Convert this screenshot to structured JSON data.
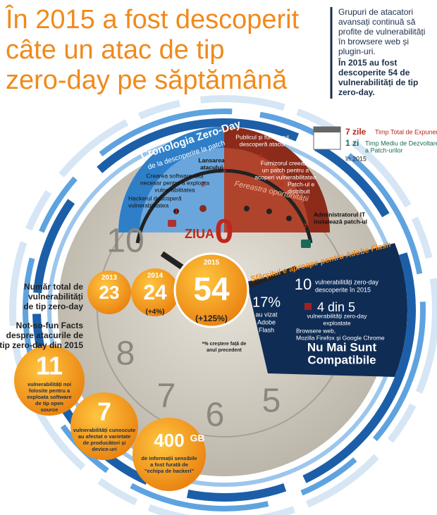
{
  "header": {
    "title": [
      "În 2015 a fost descoperit",
      "câte un atac de tip",
      "zero-day pe săptămână"
    ]
  },
  "sidebar": {
    "text": [
      "Grupuri de atacatori",
      "avansați continuă să",
      "profite de vulnerabilități",
      "în browsere web și",
      "plugin-uri."
    ],
    "highlight": [
      "În 2015 au fost",
      "descoperite 54 de",
      "vulnerabilități de tip",
      "zero-day."
    ]
  },
  "timeline": {
    "title": "Cronologia Zero-Day",
    "subtitle": "de la descoperire la patch",
    "day_label": "ZIUA",
    "day_number": "0",
    "window": "Fereastra oportunității",
    "steps": [
      {
        "number": "1",
        "label": [
          "Hackerul descoperă",
          "vulnerabilitatea"
        ]
      },
      {
        "number": "2",
        "label": [
          "Crearea software-ului",
          "necesar pentru a exploata",
          "vulnerabilitatea"
        ]
      },
      {
        "number": "3",
        "label": [
          "Lansarea",
          "atacului"
        ]
      },
      {
        "number": "4",
        "label": [
          "Publicul și furnizorul",
          "descoperă atacul"
        ]
      },
      {
        "number": "5",
        "label": [
          "Furnizorul creează",
          "un patch pentru a",
          "acoperi vulnerabilitatea"
        ]
      },
      {
        "number": "6",
        "label": [
          "Patch-ul e",
          "distribuit"
        ]
      },
      {
        "number": "7",
        "label": [
          "Administratorul IT",
          "instalează patch-ul"
        ]
      }
    ]
  },
  "exposure": {
    "days": "7 zile",
    "days_label": "Timp Total de Expunere",
    "patch": "1 zi",
    "patch_label": [
      "Timp Mediu de Dezvoltare",
      "a Patch-urilor"
    ],
    "year": "în 2015"
  },
  "totals": {
    "label": [
      "Număr total de",
      "vulnerabilități",
      "de tip zero-day"
    ],
    "years": [
      {
        "year": "2013",
        "count": 23
      },
      {
        "year": "2014",
        "count": 24,
        "change": "(+4%)"
      },
      {
        "year": "2015",
        "count": 54,
        "change": "(+125%)"
      }
    ],
    "footnote": [
      "*% creștere față de",
      "anul precedent"
    ]
  },
  "facts": {
    "title": [
      "Not-so-fun Facts",
      "despre atacurile de",
      "tip zero-day din 2015"
    ],
    "items": [
      {
        "count": 11,
        "text": [
          "vulnerabilități noi",
          "folosite pentru a",
          "exploata software",
          "de tip open",
          "source"
        ]
      },
      {
        "count": 7,
        "text": [
          "vulnerabilități cunoscute",
          "au afectat o varietate",
          "de producători și",
          "device-uri"
        ]
      },
      {
        "count": 400,
        "unit": "GB",
        "text": [
          "de informații sensibile",
          "a fost furată de",
          "\"echipa de hackeri\""
        ]
      }
    ]
  },
  "flash": {
    "title": "Sfârșitul e aproape pentru Adobe Flash",
    "share": "17%",
    "share_label": [
      "au vizat",
      "Adobe",
      "Flash"
    ],
    "found": 10,
    "found_label": [
      "vulnerabilități zero-day",
      "descoperite în 2015"
    ],
    "exploited": "4 din 5",
    "exploited_label": [
      "vulnerabilități zero-day",
      "exploatate"
    ],
    "browsers": [
      "Browsere web,",
      "Mozilla Firefox și Google Chrome"
    ],
    "verdict": [
      "Nu Mai Sunt",
      "Compatibile"
    ]
  },
  "clock_numerals": [
    "10",
    "8",
    "7",
    "6",
    "5"
  ]
}
